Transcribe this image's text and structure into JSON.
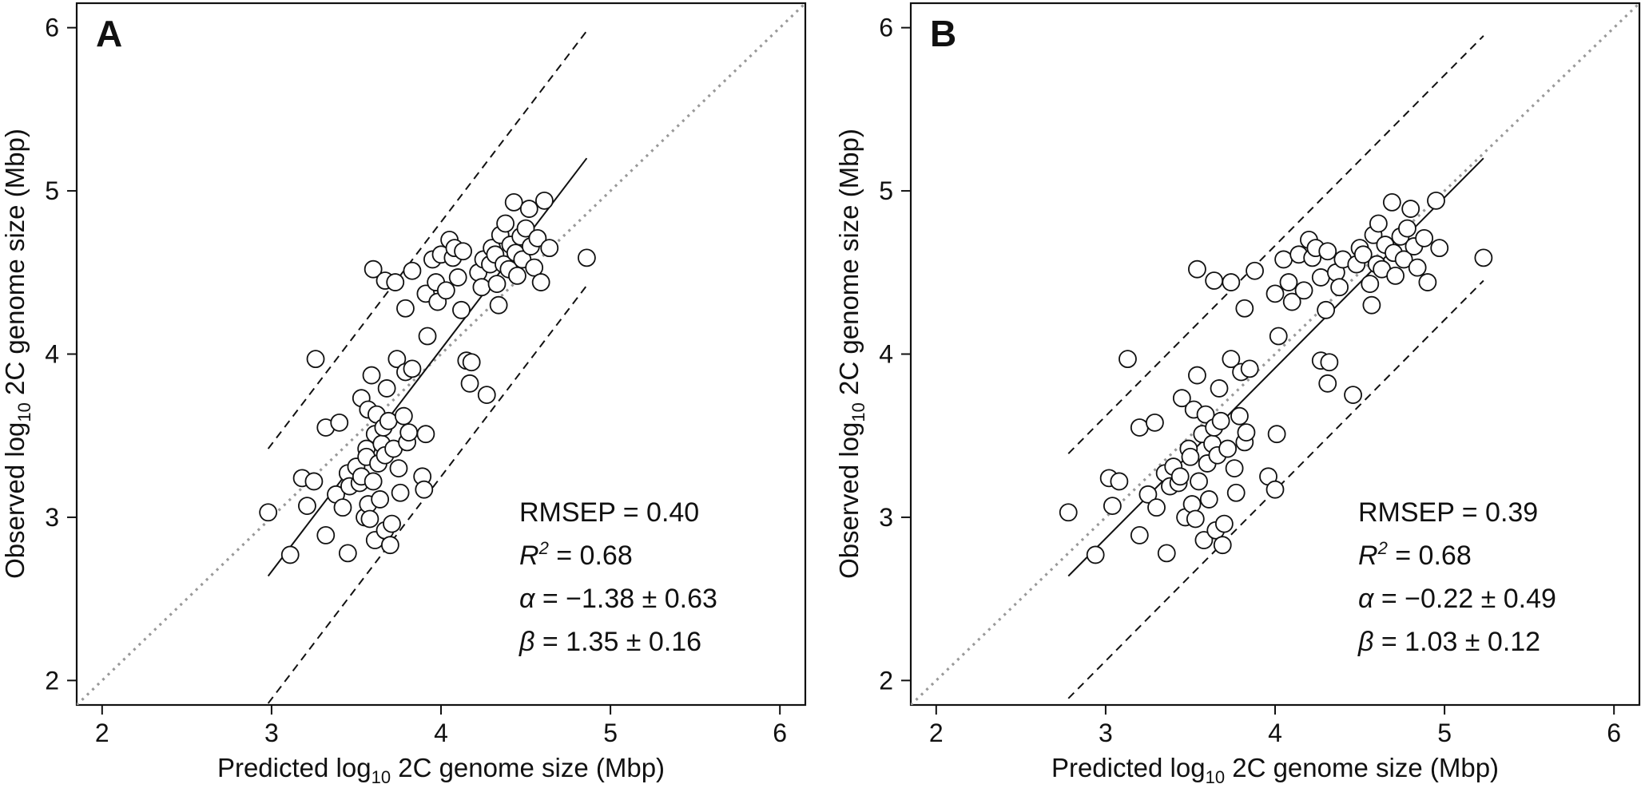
{
  "chart_data": [
    {
      "type": "scatter",
      "panel_label": "A",
      "xlabel": {
        "prefix": "Predicted log",
        "subscript": "10",
        "suffix": " 2C genome size (Mbp)"
      },
      "ylabel": {
        "prefix": "Observed log",
        "subscript": "10",
        "suffix": " 2C genome size (Mbp)"
      },
      "xlim": [
        1.85,
        6.15
      ],
      "ylim": [
        1.85,
        6.15
      ],
      "xticks": [
        "2",
        "3",
        "4",
        "5",
        "6"
      ],
      "yticks": [
        "2",
        "3",
        "4",
        "5",
        "6"
      ],
      "grid": false,
      "identity_line": {
        "style": "dotted",
        "color": "#999999"
      },
      "fit_line": {
        "x": [
          2.98,
          4.86
        ],
        "y": [
          2.64,
          5.2
        ]
      },
      "prediction_band": {
        "offset": 0.78,
        "x": [
          2.98,
          4.86
        ]
      },
      "stats": {
        "rmsep": "RMSEP = 0.40",
        "r2_label": "R",
        "r2_sup": "2",
        "r2_value": " = 0.68",
        "alpha_symbol": "α",
        "alpha_value": " = −1.38 ± 0.63",
        "beta_symbol": "β",
        "beta_value": " = 1.35 ± 0.16"
      },
      "points": [
        [
          2.98,
          3.03
        ],
        [
          3.11,
          2.77
        ],
        [
          3.18,
          3.24
        ],
        [
          3.21,
          3.07
        ],
        [
          3.25,
          3.22
        ],
        [
          3.26,
          3.97
        ],
        [
          3.32,
          2.89
        ],
        [
          3.32,
          3.55
        ],
        [
          3.38,
          3.14
        ],
        [
          3.4,
          3.58
        ],
        [
          3.42,
          3.06
        ],
        [
          3.45,
          3.27
        ],
        [
          3.45,
          2.78
        ],
        [
          3.46,
          3.19
        ],
        [
          3.5,
          3.31
        ],
        [
          3.52,
          3.21
        ],
        [
          3.53,
          3.25
        ],
        [
          3.53,
          3.73
        ],
        [
          3.55,
          3.0
        ],
        [
          3.56,
          3.42
        ],
        [
          3.56,
          3.37
        ],
        [
          3.57,
          3.08
        ],
        [
          3.57,
          3.66
        ],
        [
          3.58,
          2.99
        ],
        [
          3.59,
          3.87
        ],
        [
          3.6,
          3.22
        ],
        [
          3.61,
          3.51
        ],
        [
          3.61,
          2.86
        ],
        [
          3.62,
          3.63
        ],
        [
          3.63,
          3.33
        ],
        [
          3.64,
          3.11
        ],
        [
          3.65,
          3.45
        ],
        [
          3.66,
          3.55
        ],
        [
          3.67,
          2.92
        ],
        [
          3.67,
          3.38
        ],
        [
          3.68,
          3.79
        ],
        [
          3.69,
          3.59
        ],
        [
          3.7,
          2.83
        ],
        [
          3.71,
          2.96
        ],
        [
          3.72,
          3.42
        ],
        [
          3.74,
          3.97
        ],
        [
          3.75,
          3.3
        ],
        [
          3.76,
          3.15
        ],
        [
          3.78,
          3.62
        ],
        [
          3.79,
          3.89
        ],
        [
          3.8,
          3.46
        ],
        [
          3.81,
          3.52
        ],
        [
          3.83,
          3.91
        ],
        [
          3.89,
          3.25
        ],
        [
          3.9,
          3.17
        ],
        [
          3.91,
          3.51
        ],
        [
          3.92,
          4.11
        ],
        [
          3.6,
          4.52
        ],
        [
          3.67,
          4.45
        ],
        [
          3.73,
          4.44
        ],
        [
          3.79,
          4.28
        ],
        [
          3.83,
          4.51
        ],
        [
          3.91,
          4.37
        ],
        [
          3.95,
          4.58
        ],
        [
          3.97,
          4.44
        ],
        [
          3.98,
          4.32
        ],
        [
          4.0,
          4.61
        ],
        [
          4.03,
          4.39
        ],
        [
          4.05,
          4.7
        ],
        [
          4.07,
          4.59
        ],
        [
          4.08,
          4.65
        ],
        [
          4.1,
          4.47
        ],
        [
          4.12,
          4.27
        ],
        [
          4.13,
          4.63
        ],
        [
          4.15,
          3.96
        ],
        [
          4.17,
          3.82
        ],
        [
          4.18,
          3.95
        ],
        [
          4.22,
          4.5
        ],
        [
          4.24,
          4.41
        ],
        [
          4.25,
          4.58
        ],
        [
          4.27,
          3.75
        ],
        [
          4.29,
          4.55
        ],
        [
          4.3,
          4.65
        ],
        [
          4.32,
          4.61
        ],
        [
          4.33,
          4.43
        ],
        [
          4.34,
          4.3
        ],
        [
          4.35,
          4.73
        ],
        [
          4.37,
          4.55
        ],
        [
          4.38,
          4.8
        ],
        [
          4.4,
          4.52
        ],
        [
          4.41,
          4.67
        ],
        [
          4.43,
          4.93
        ],
        [
          4.44,
          4.62
        ],
        [
          4.45,
          4.48
        ],
        [
          4.47,
          4.72
        ],
        [
          4.48,
          4.58
        ],
        [
          4.5,
          4.77
        ],
        [
          4.52,
          4.89
        ],
        [
          4.53,
          4.66
        ],
        [
          4.55,
          4.53
        ],
        [
          4.57,
          4.71
        ],
        [
          4.59,
          4.44
        ],
        [
          4.61,
          4.94
        ],
        [
          4.64,
          4.65
        ],
        [
          4.86,
          4.59
        ]
      ]
    },
    {
      "type": "scatter",
      "panel_label": "B",
      "xlabel": {
        "prefix": "Predicted log",
        "subscript": "10",
        "suffix": " 2C genome size (Mbp)"
      },
      "ylabel": {
        "prefix": "Observed log",
        "subscript": "10",
        "suffix": " 2C genome size (Mbp)"
      },
      "xlim": [
        1.85,
        6.15
      ],
      "ylim": [
        1.85,
        6.15
      ],
      "xticks": [
        "2",
        "3",
        "4",
        "5",
        "6"
      ],
      "yticks": [
        "2",
        "3",
        "4",
        "5",
        "6"
      ],
      "grid": false,
      "identity_line": {
        "style": "dotted",
        "color": "#999999"
      },
      "fit_line": {
        "x": [
          2.78,
          5.23
        ],
        "y": [
          2.64,
          5.2
        ]
      },
      "prediction_band": {
        "offset": 0.75,
        "x": [
          2.78,
          5.23
        ]
      },
      "stats": {
        "rmsep": "RMSEP = 0.39",
        "r2_label": "R",
        "r2_sup": "2",
        "r2_value": " = 0.68",
        "alpha_symbol": "α",
        "alpha_value": " = −0.22 ± 0.49",
        "beta_symbol": "β",
        "beta_value": " = 1.03 ± 0.12"
      },
      "points": [
        [
          2.78,
          3.03
        ],
        [
          2.94,
          2.77
        ],
        [
          3.02,
          3.24
        ],
        [
          3.04,
          3.07
        ],
        [
          3.08,
          3.22
        ],
        [
          3.13,
          3.97
        ],
        [
          3.2,
          2.89
        ],
        [
          3.2,
          3.55
        ],
        [
          3.25,
          3.14
        ],
        [
          3.29,
          3.58
        ],
        [
          3.3,
          3.06
        ],
        [
          3.35,
          3.27
        ],
        [
          3.36,
          2.78
        ],
        [
          3.38,
          3.19
        ],
        [
          3.4,
          3.31
        ],
        [
          3.43,
          3.21
        ],
        [
          3.44,
          3.25
        ],
        [
          3.45,
          3.73
        ],
        [
          3.47,
          3.0
        ],
        [
          3.49,
          3.42
        ],
        [
          3.5,
          3.37
        ],
        [
          3.51,
          3.08
        ],
        [
          3.52,
          3.66
        ],
        [
          3.53,
          2.99
        ],
        [
          3.54,
          3.87
        ],
        [
          3.55,
          3.22
        ],
        [
          3.57,
          3.51
        ],
        [
          3.58,
          2.86
        ],
        [
          3.59,
          3.63
        ],
        [
          3.6,
          3.33
        ],
        [
          3.61,
          3.11
        ],
        [
          3.63,
          3.45
        ],
        [
          3.64,
          3.55
        ],
        [
          3.65,
          2.92
        ],
        [
          3.66,
          3.38
        ],
        [
          3.67,
          3.79
        ],
        [
          3.68,
          3.59
        ],
        [
          3.69,
          2.83
        ],
        [
          3.7,
          2.96
        ],
        [
          3.72,
          3.42
        ],
        [
          3.74,
          3.97
        ],
        [
          3.76,
          3.3
        ],
        [
          3.77,
          3.15
        ],
        [
          3.79,
          3.62
        ],
        [
          3.8,
          3.89
        ],
        [
          3.82,
          3.46
        ],
        [
          3.83,
          3.52
        ],
        [
          3.85,
          3.91
        ],
        [
          3.96,
          3.25
        ],
        [
          4.0,
          3.17
        ],
        [
          4.01,
          3.51
        ],
        [
          4.02,
          4.11
        ],
        [
          3.54,
          4.52
        ],
        [
          3.64,
          4.45
        ],
        [
          3.74,
          4.44
        ],
        [
          3.82,
          4.28
        ],
        [
          3.88,
          4.51
        ],
        [
          4.0,
          4.37
        ],
        [
          4.05,
          4.58
        ],
        [
          4.08,
          4.44
        ],
        [
          4.1,
          4.32
        ],
        [
          4.14,
          4.61
        ],
        [
          4.17,
          4.39
        ],
        [
          4.2,
          4.7
        ],
        [
          4.22,
          4.59
        ],
        [
          4.24,
          4.65
        ],
        [
          4.27,
          4.47
        ],
        [
          4.3,
          4.27
        ],
        [
          4.31,
          4.63
        ],
        [
          4.27,
          3.96
        ],
        [
          4.31,
          3.82
        ],
        [
          4.32,
          3.95
        ],
        [
          4.36,
          4.5
        ],
        [
          4.38,
          4.41
        ],
        [
          4.4,
          4.58
        ],
        [
          4.46,
          3.75
        ],
        [
          4.48,
          4.55
        ],
        [
          4.5,
          4.65
        ],
        [
          4.52,
          4.61
        ],
        [
          4.56,
          4.43
        ],
        [
          4.57,
          4.3
        ],
        [
          4.58,
          4.73
        ],
        [
          4.6,
          4.55
        ],
        [
          4.61,
          4.8
        ],
        [
          4.63,
          4.52
        ],
        [
          4.65,
          4.67
        ],
        [
          4.69,
          4.93
        ],
        [
          4.7,
          4.62
        ],
        [
          4.71,
          4.48
        ],
        [
          4.74,
          4.72
        ],
        [
          4.76,
          4.58
        ],
        [
          4.78,
          4.77
        ],
        [
          4.8,
          4.89
        ],
        [
          4.82,
          4.66
        ],
        [
          4.84,
          4.53
        ],
        [
          4.88,
          4.71
        ],
        [
          4.9,
          4.44
        ],
        [
          4.95,
          4.94
        ],
        [
          4.97,
          4.65
        ],
        [
          5.23,
          4.59
        ]
      ]
    }
  ]
}
